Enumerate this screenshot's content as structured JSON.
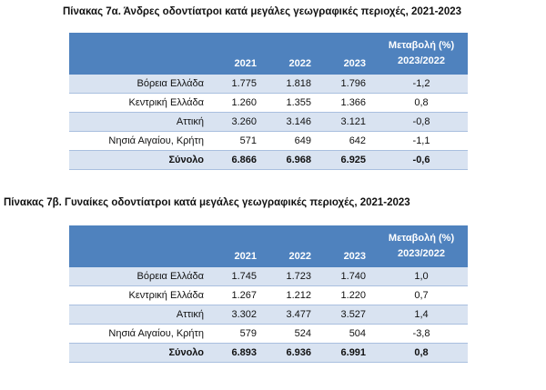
{
  "tables": [
    {
      "caption": "Πίνακας 7α. Άνδρες οδοντίατροι κατά μεγάλες γεωγραφικές περιοχές, 2021-2023",
      "headers": {
        "y1": "2021",
        "y2": "2022",
        "y3": "2023",
        "change_line1": "Μεταβολή (%)",
        "change_line2": "2023/2022"
      },
      "rows": [
        {
          "region": "Βόρεια Ελλάδα",
          "v2021": "1.775",
          "v2022": "1.818",
          "v2023": "1.796",
          "change": "-1,2"
        },
        {
          "region": "Κεντρική Ελλάδα",
          "v2021": "1.260",
          "v2022": "1.355",
          "v2023": "1.366",
          "change": "0,8"
        },
        {
          "region": "Αττική",
          "v2021": "3.260",
          "v2022": "3.146",
          "v2023": "3.121",
          "change": "-0,8"
        },
        {
          "region": "Νησιά Αιγαίου, Κρήτη",
          "v2021": "571",
          "v2022": "649",
          "v2023": "642",
          "change": "-1,1"
        }
      ],
      "total": {
        "region": "Σύνολο",
        "v2021": "6.866",
        "v2022": "6.968",
        "v2023": "6.925",
        "change": "-0,6"
      }
    },
    {
      "caption": "Πίνακας 7β. Γυναίκες οδοντίατροι κατά μεγάλες γεωγραφικές περιοχές, 2021-2023",
      "headers": {
        "y1": "2021",
        "y2": "2022",
        "y3": "2023",
        "change_line1": "Μεταβολή (%)",
        "change_line2": "2023/2022"
      },
      "rows": [
        {
          "region": "Βόρεια Ελλάδα",
          "v2021": "1.745",
          "v2022": "1.723",
          "v2023": "1.740",
          "change": "1,0"
        },
        {
          "region": "Κεντρική Ελλάδα",
          "v2021": "1.267",
          "v2022": "1.212",
          "v2023": "1.220",
          "change": "0,7"
        },
        {
          "region": "Αττική",
          "v2021": "3.302",
          "v2022": "3.477",
          "v2023": "3.527",
          "change": "1,4"
        },
        {
          "region": "Νησιά Αιγαίου, Κρήτη",
          "v2021": "579",
          "v2022": "524",
          "v2023": "504",
          "change": "-3,8"
        }
      ],
      "total": {
        "region": "Σύνολο",
        "v2021": "6.893",
        "v2022": "6.936",
        "v2023": "6.991",
        "change": "0,8"
      }
    }
  ],
  "colors": {
    "header": "#4f82be",
    "band": "#d9e3f1",
    "rule": "#a9bfdf"
  }
}
